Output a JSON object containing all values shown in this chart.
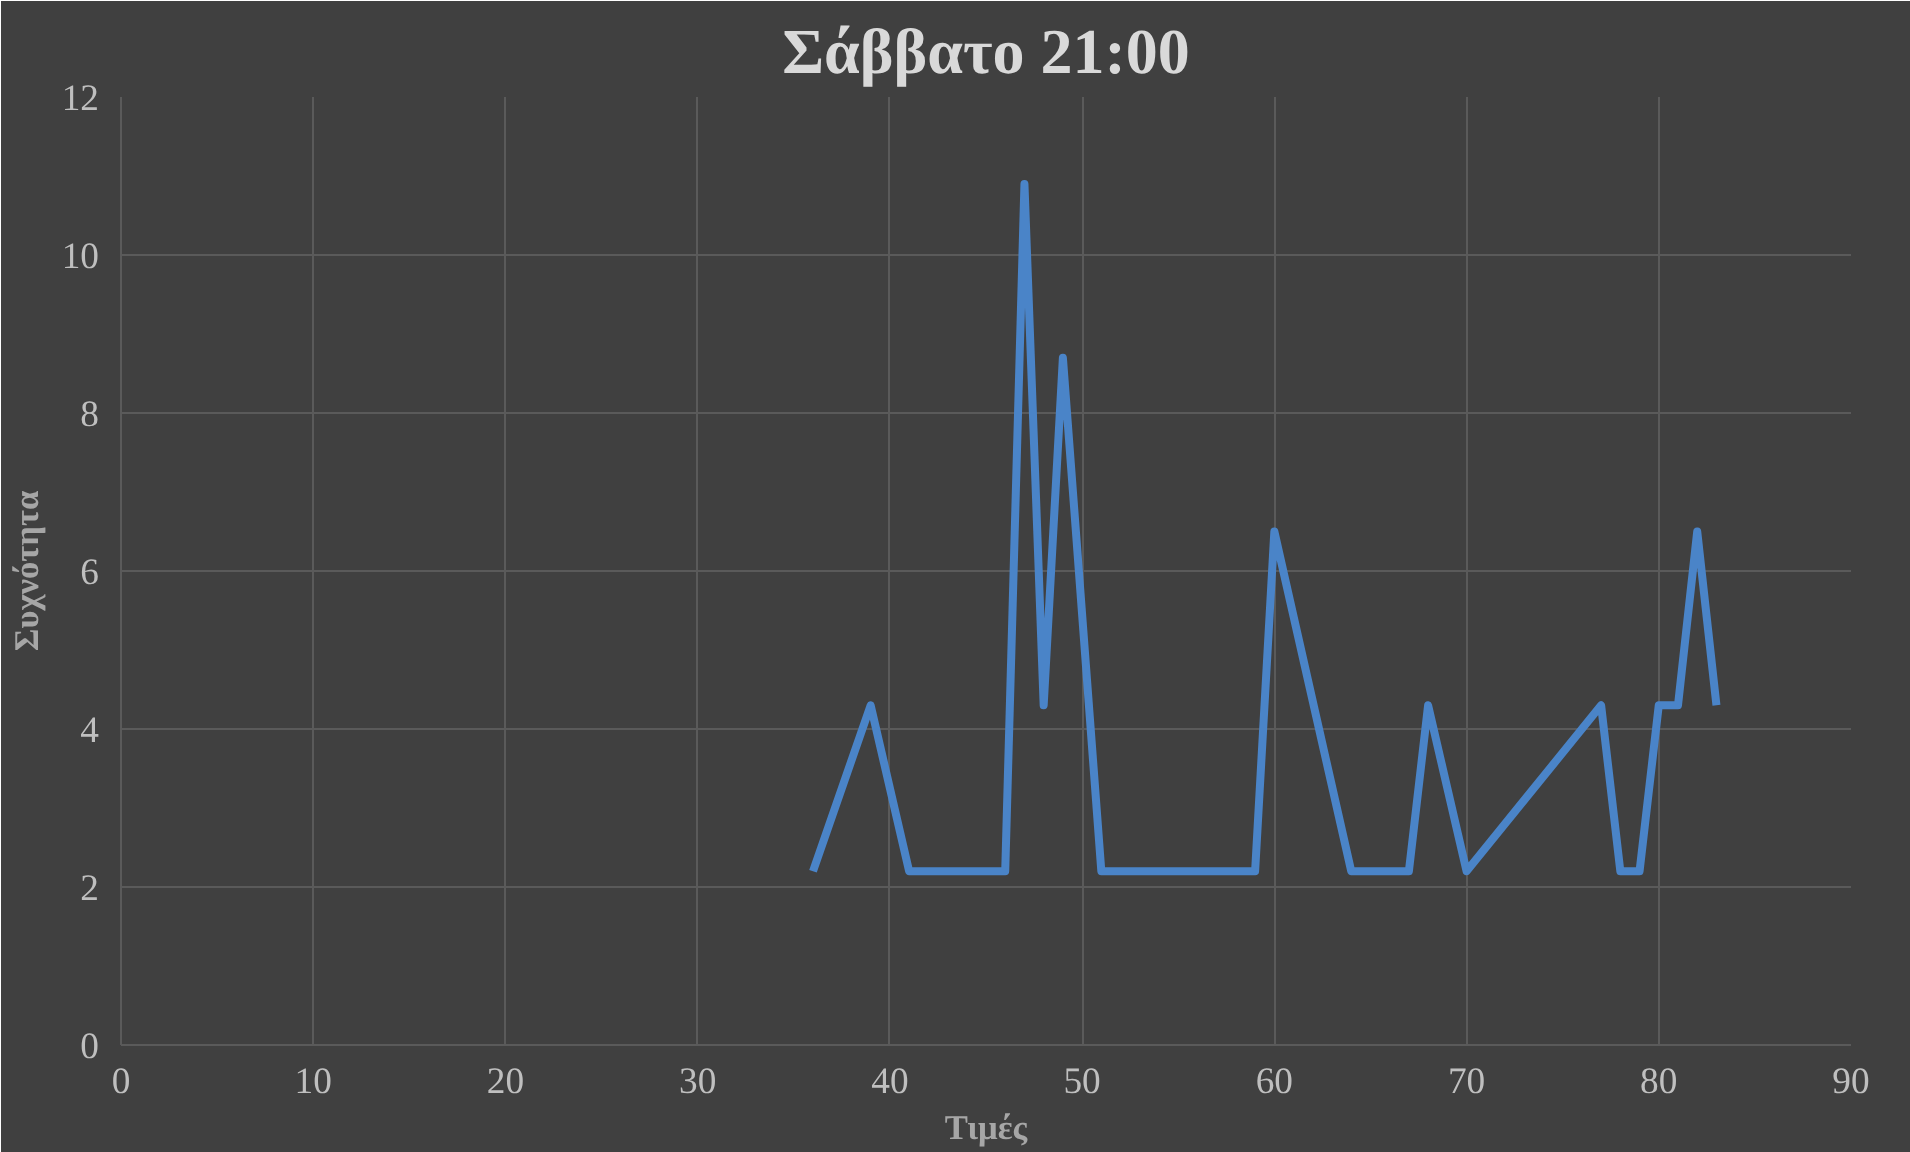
{
  "chart_data": {
    "type": "line",
    "title": "Σάββατο 21:00",
    "xlabel": "Τιμές",
    "ylabel": "Συχνότητα",
    "x": [
      36,
      39,
      41,
      46,
      47,
      48,
      49,
      51,
      59,
      60,
      64,
      67,
      68,
      70,
      77,
      78,
      79,
      80,
      81,
      82,
      83
    ],
    "series": [
      {
        "color": "#4a84c8",
        "values": [
          2.2,
          4.3,
          2.2,
          2.2,
          10.9,
          4.3,
          8.7,
          2.2,
          2.2,
          6.5,
          2.2,
          2.2,
          4.3,
          2.2,
          4.3,
          2.2,
          2.2,
          4.3,
          4.3,
          6.5,
          4.3
        ]
      }
    ],
    "xlim": [
      0,
      90
    ],
    "xticks": [
      0,
      10,
      20,
      30,
      40,
      50,
      60,
      70,
      80,
      90
    ],
    "ylim": [
      0,
      12
    ],
    "yticks": [
      0,
      2,
      4,
      6,
      8,
      10,
      12
    ],
    "grid": true,
    "marker": "none",
    "line_style": "solid"
  }
}
